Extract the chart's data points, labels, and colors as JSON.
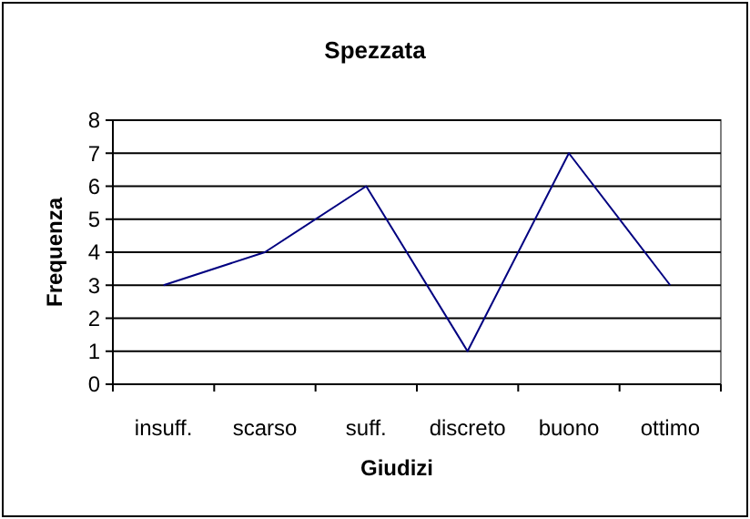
{
  "chart_data": {
    "type": "line",
    "title": "Spezzata",
    "xlabel": "Giudizi",
    "ylabel": "Frequenza",
    "categories": [
      "insuff.",
      "scarso",
      "suff.",
      "discreto",
      "buono",
      "ottimo"
    ],
    "series": [
      {
        "color": "#000080",
        "values": [
          3,
          4,
          6,
          1,
          7,
          3
        ]
      }
    ],
    "ylim": [
      0,
      8
    ],
    "yticks": [
      0,
      1,
      2,
      3,
      4,
      5,
      6,
      7,
      8
    ],
    "grid": "y",
    "marker": "none",
    "line_style": "solid"
  }
}
